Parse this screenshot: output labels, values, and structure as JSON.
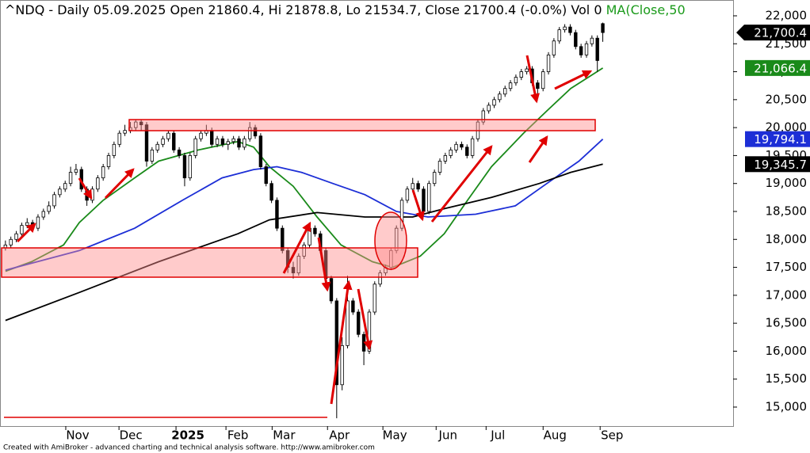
{
  "chart_data": {
    "type": "candlestick",
    "title": "^NDQ - Daily 05.09.2025 Open 21860.4, Hi 21878.8, Lo 21534.7, Close 21700.4 (-0.0%) Vol 0",
    "ma_label": "MA(Close,50",
    "footer": "Created with AmiBroker - advanced charting and technical analysis software. http://www.amibroker.com",
    "xlim": [
      -1,
      134
    ],
    "xticks": [
      {
        "value": 13.3,
        "label": "Nov"
      },
      {
        "value": 23.1,
        "label": "Dec"
      },
      {
        "value": 33.6,
        "label": "2025"
      },
      {
        "value": 42.8,
        "label": "Feb"
      },
      {
        "value": 51.3,
        "label": "Mar"
      },
      {
        "value": 61.5,
        "label": "Apr"
      },
      {
        "value": 71.7,
        "label": "May"
      },
      {
        "value": 81.5,
        "label": "Jun"
      },
      {
        "value": 90.7,
        "label": "Jul"
      },
      {
        "value": 101.2,
        "label": "Aug"
      },
      {
        "value": 111.7,
        "label": "Sep"
      }
    ],
    "ylim": [
      14660,
      22283
    ],
    "yticks": [
      {
        "value": 15000,
        "label": "15,000"
      },
      {
        "value": 15500,
        "label": "15,500"
      },
      {
        "value": 16000,
        "label": "16,000"
      },
      {
        "value": 16500,
        "label": "16,500"
      },
      {
        "value": 17000,
        "label": "17,000"
      },
      {
        "value": 17500,
        "label": "17,500"
      },
      {
        "value": 18000,
        "label": "18,000"
      },
      {
        "value": 18500,
        "label": "18,500"
      },
      {
        "value": 19000,
        "label": "19,000"
      },
      {
        "value": 19500,
        "label": "19,500"
      },
      {
        "value": 20000,
        "label": "20,000"
      },
      {
        "value": 20500,
        "label": "20,500"
      },
      {
        "value": 21000,
        "label": "21,000"
      },
      {
        "value": 21500,
        "label": "21,500"
      },
      {
        "value": 22000,
        "label": "22,000"
      }
    ],
    "up_color": "#ffffff",
    "down_color": "#000000",
    "last_close": {
      "value": 21700.4,
      "label": "21,700.4",
      "color": "#000000"
    },
    "ohlc": [
      [
        17850,
        17980,
        17800,
        17900
      ],
      [
        17900,
        18050,
        17850,
        18000
      ],
      [
        18000,
        18150,
        17950,
        18100
      ],
      [
        18100,
        18300,
        18050,
        18250
      ],
      [
        18250,
        18380,
        18200,
        18300
      ],
      [
        18300,
        18350,
        18150,
        18200
      ],
      [
        18200,
        18450,
        18150,
        18400
      ],
      [
        18400,
        18550,
        18350,
        18500
      ],
      [
        18500,
        18680,
        18450,
        18600
      ],
      [
        18600,
        18850,
        18550,
        18800
      ],
      [
        18800,
        18950,
        18750,
        18900
      ],
      [
        18900,
        19050,
        18850,
        19000
      ],
      [
        19000,
        19300,
        18950,
        19200
      ],
      [
        19200,
        19350,
        19150,
        19250
      ],
      [
        19250,
        19300,
        18850,
        18900
      ],
      [
        18900,
        18950,
        18600,
        18700
      ],
      [
        18700,
        18950,
        18650,
        18900
      ],
      [
        18900,
        19150,
        18850,
        19100
      ],
      [
        19100,
        19350,
        19050,
        19300
      ],
      [
        19300,
        19550,
        19250,
        19500
      ],
      [
        19500,
        19750,
        19450,
        19700
      ],
      [
        19700,
        19950,
        19650,
        19900
      ],
      [
        19900,
        20050,
        19850,
        19950
      ],
      [
        19950,
        20100,
        19900,
        20000
      ],
      [
        20000,
        20150,
        19950,
        20100
      ],
      [
        20100,
        20150,
        19950,
        20050
      ],
      [
        20050,
        20100,
        19300,
        19400
      ],
      [
        19400,
        19650,
        19350,
        19600
      ],
      [
        19600,
        19750,
        19550,
        19700
      ],
      [
        19700,
        19850,
        19650,
        19800
      ],
      [
        19800,
        19950,
        19750,
        19900
      ],
      [
        19900,
        19950,
        19550,
        19600
      ],
      [
        19600,
        19650,
        19450,
        19500
      ],
      [
        19500,
        19550,
        18950,
        19100
      ],
      [
        19100,
        19550,
        19050,
        19500
      ],
      [
        19500,
        19850,
        19450,
        19800
      ],
      [
        19800,
        19950,
        19750,
        19900
      ],
      [
        19900,
        20050,
        19850,
        19950
      ],
      [
        19950,
        20000,
        19650,
        19700
      ],
      [
        19700,
        19850,
        19650,
        19800
      ],
      [
        19800,
        19850,
        19650,
        19700
      ],
      [
        19700,
        19800,
        19600,
        19750
      ],
      [
        19750,
        19850,
        19700,
        19800
      ],
      [
        19800,
        19850,
        19600,
        19650
      ],
      [
        19650,
        19850,
        19600,
        19800
      ],
      [
        19800,
        20100,
        19750,
        20000
      ],
      [
        20000,
        20050,
        19800,
        19850
      ],
      [
        19850,
        19900,
        19250,
        19300
      ],
      [
        19300,
        19350,
        18950,
        19000
      ],
      [
        19000,
        19050,
        18650,
        18700
      ],
      [
        18700,
        18750,
        18150,
        18200
      ],
      [
        18200,
        18250,
        17750,
        17800
      ],
      [
        17800,
        17850,
        17400,
        17500
      ],
      [
        17500,
        17600,
        17300,
        17400
      ],
      [
        17400,
        17750,
        17350,
        17700
      ],
      [
        17700,
        17950,
        17650,
        17900
      ],
      [
        17900,
        18300,
        17850,
        18200
      ],
      [
        18200,
        18250,
        18050,
        18100
      ],
      [
        18100,
        18150,
        17750,
        17800
      ],
      [
        17800,
        17850,
        17250,
        17300
      ],
      [
        17300,
        17350,
        16850,
        16900
      ],
      [
        16900,
        16950,
        14800,
        15400
      ],
      [
        15400,
        16250,
        15300,
        16100
      ],
      [
        16100,
        17350,
        16050,
        16900
      ],
      [
        16900,
        16950,
        16650,
        16700
      ],
      [
        16700,
        16750,
        16250,
        16300
      ],
      [
        16300,
        16350,
        15750,
        16000
      ],
      [
        16000,
        16750,
        15950,
        16700
      ],
      [
        16700,
        17250,
        16650,
        17200
      ],
      [
        17200,
        17450,
        17150,
        17400
      ],
      [
        17400,
        17550,
        17350,
        17500
      ],
      [
        17500,
        17850,
        17450,
        17800
      ],
      [
        17800,
        18250,
        17750,
        18200
      ],
      [
        18200,
        18750,
        18150,
        18700
      ],
      [
        18700,
        18950,
        18650,
        18900
      ],
      [
        18900,
        19100,
        18850,
        19000
      ],
      [
        19000,
        19050,
        18850,
        18900
      ],
      [
        18900,
        18950,
        18450,
        18500
      ],
      [
        18500,
        19050,
        18450,
        19000
      ],
      [
        19000,
        19250,
        18950,
        19200
      ],
      [
        19200,
        19450,
        19150,
        19400
      ],
      [
        19400,
        19550,
        19350,
        19500
      ],
      [
        19500,
        19650,
        19450,
        19600
      ],
      [
        19600,
        19750,
        19550,
        19700
      ],
      [
        19700,
        19750,
        19600,
        19650
      ],
      [
        19650,
        19700,
        19450,
        19500
      ],
      [
        19500,
        19850,
        19450,
        19800
      ],
      [
        19800,
        20150,
        19750,
        20100
      ],
      [
        20100,
        20350,
        20050,
        20300
      ],
      [
        20300,
        20450,
        20250,
        20400
      ],
      [
        20400,
        20550,
        20350,
        20500
      ],
      [
        20500,
        20650,
        20450,
        20600
      ],
      [
        20600,
        20750,
        20550,
        20700
      ],
      [
        20700,
        20850,
        20650,
        20800
      ],
      [
        20800,
        20950,
        20750,
        20900
      ],
      [
        20900,
        21050,
        20850,
        21000
      ],
      [
        21000,
        21100,
        20950,
        21050
      ],
      [
        21050,
        21100,
        20750,
        20800
      ],
      [
        20800,
        20850,
        20600,
        20700
      ],
      [
        20700,
        21050,
        20650,
        21000
      ],
      [
        21000,
        21350,
        20950,
        21300
      ],
      [
        21300,
        21600,
        21250,
        21550
      ],
      [
        21550,
        21800,
        21500,
        21750
      ],
      [
        21750,
        21850,
        21700,
        21800
      ],
      [
        21800,
        21850,
        21650,
        21700
      ],
      [
        21700,
        21750,
        21400,
        21450
      ],
      [
        21450,
        21500,
        21250,
        21300
      ],
      [
        21300,
        21550,
        21250,
        21500
      ],
      [
        21500,
        21650,
        21450,
        21600
      ],
      [
        21600,
        21650,
        21000,
        21200
      ],
      [
        21860.4,
        21878.8,
        21534.7,
        21700.4
      ]
    ],
    "series": [
      {
        "color": "#1a8a1a",
        "text_color": "#ffffff",
        "x": [
          0,
          4.8,
          10.7,
          13.6,
          18,
          23.8,
          28.2,
          35.5,
          42.8,
          45.7,
          48.6,
          53,
          57.4,
          61.8,
          67.6,
          71.3,
          76.4,
          80.8,
          85.1,
          89.5,
          95.4,
          99.7,
          104.1,
          110
        ],
        "values": [
          17430,
          17600,
          17900,
          18300,
          18700,
          19100,
          19400,
          19600,
          19750,
          19650,
          19300,
          18950,
          18400,
          17900,
          17600,
          17500,
          17700,
          18100,
          18700,
          19300,
          19900,
          20300,
          20700,
          21066.4
        ],
        "last_value": {
          "value": 21066.4,
          "label": "21,066.4"
        }
      },
      {
        "color": "#1c2ed6",
        "text_color": "#ffffff",
        "x": [
          0,
          13.6,
          23.8,
          32.6,
          39.9,
          45.7,
          50,
          54.5,
          60.3,
          66.2,
          72,
          77.8,
          86.6,
          93.9,
          99.7,
          105.6,
          110
        ],
        "values": [
          17450,
          17800,
          18200,
          18700,
          19100,
          19250,
          19300,
          19200,
          19000,
          18800,
          18500,
          18400,
          18450,
          18600,
          19000,
          19400,
          19794.1
        ],
        "last_value": {
          "value": 19794.1,
          "label": "19,794.1"
        }
      },
      {
        "color": "#000000",
        "text_color": "#ffffff",
        "x": [
          0,
          13.6,
          28.2,
          42.8,
          48.6,
          57.4,
          66.2,
          75,
          80.8,
          89.5,
          98.3,
          104.1,
          110
        ],
        "values": [
          16550,
          17050,
          17600,
          18100,
          18350,
          18480,
          18400,
          18400,
          18550,
          18750,
          19000,
          19200,
          19345.7
        ],
        "last_value": {
          "value": 19345.7,
          "label": "19,345.7"
        }
      }
    ]
  }
}
